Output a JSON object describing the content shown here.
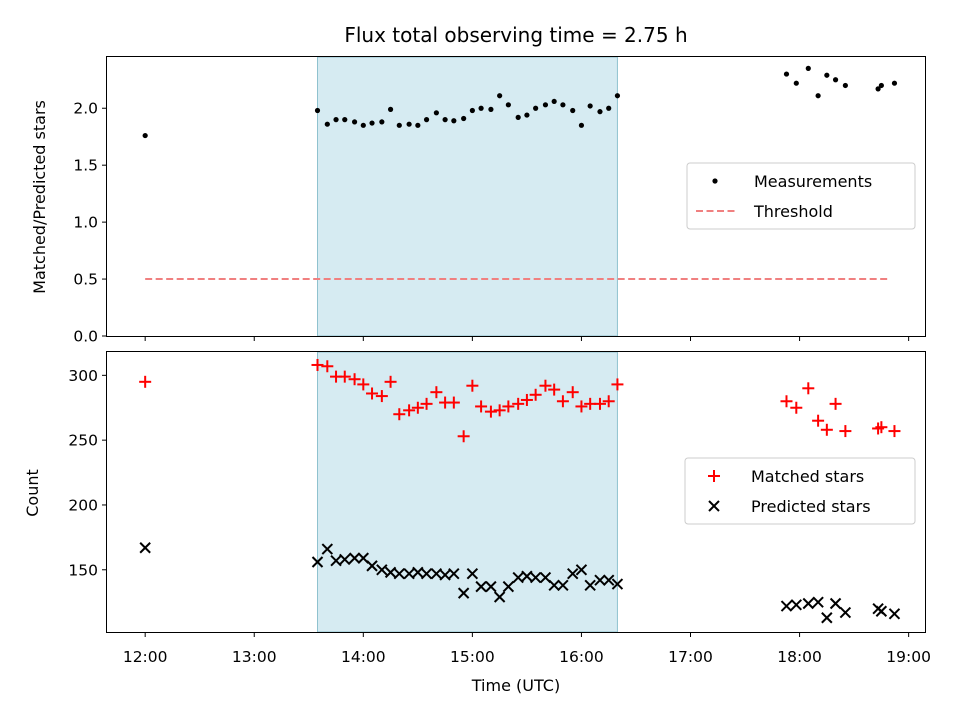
{
  "chart_data": [
    {
      "type": "scatter",
      "title": "Flux total observing time = 2.75 h",
      "xlabel": "",
      "ylabel": "Matched/Predicted stars",
      "xlim": [
        11.65,
        19.15
      ],
      "ylim": [
        0,
        2.45
      ],
      "yticks": [
        0.0,
        0.5,
        1.0,
        1.5,
        2.0
      ],
      "ytick_labels": [
        "0.0",
        "0.5",
        "1.0",
        "1.5",
        "2.0"
      ],
      "shaded_span": [
        13.58,
        16.33
      ],
      "legend": {
        "position": "center-right",
        "entries": [
          "Measurements",
          "Threshold"
        ]
      },
      "series": [
        {
          "name": "Measurements",
          "marker": "dot",
          "color": "#000000",
          "x": [
            12.0,
            13.58,
            13.67,
            13.75,
            13.83,
            13.92,
            14.0,
            14.08,
            14.17,
            14.25,
            14.33,
            14.42,
            14.5,
            14.58,
            14.67,
            14.75,
            14.83,
            14.92,
            15.0,
            15.08,
            15.17,
            15.25,
            15.33,
            15.42,
            15.5,
            15.58,
            15.67,
            15.75,
            15.83,
            15.92,
            16.0,
            16.08,
            16.17,
            16.25,
            16.33,
            17.88,
            17.97,
            18.08,
            18.17,
            18.25,
            18.33,
            18.42,
            18.72,
            18.75,
            18.87
          ],
          "y": [
            1.76,
            1.98,
            1.86,
            1.9,
            1.9,
            1.88,
            1.85,
            1.87,
            1.88,
            1.99,
            1.85,
            1.86,
            1.85,
            1.9,
            1.96,
            1.9,
            1.89,
            1.91,
            1.98,
            2.0,
            1.99,
            2.11,
            2.03,
            1.92,
            1.94,
            2.0,
            2.03,
            2.06,
            2.03,
            1.98,
            1.85,
            2.02,
            1.97,
            2.0,
            2.11,
            2.3,
            2.22,
            2.35,
            2.11,
            2.29,
            2.25,
            2.2,
            2.17,
            2.2,
            2.22
          ]
        },
        {
          "name": "Threshold",
          "marker": "dashed-line",
          "color": "#f08080",
          "x": [
            12.0,
            18.83
          ],
          "y": [
            0.5,
            0.5
          ]
        }
      ]
    },
    {
      "type": "scatter",
      "title": "",
      "xlabel": "Time (UTC)",
      "ylabel": "Count",
      "xlim": [
        11.65,
        19.15
      ],
      "ylim": [
        102,
        318
      ],
      "xticks": [
        12,
        13,
        14,
        15,
        16,
        17,
        18,
        19
      ],
      "xtick_labels": [
        "12:00",
        "13:00",
        "14:00",
        "15:00",
        "16:00",
        "17:00",
        "18:00",
        "19:00"
      ],
      "yticks": [
        150,
        200,
        250,
        300
      ],
      "ytick_labels": [
        "150",
        "200",
        "250",
        "300"
      ],
      "shaded_span": [
        13.58,
        16.33
      ],
      "legend": {
        "position": "center-right",
        "entries": [
          "Matched stars",
          "Predicted stars"
        ]
      },
      "series": [
        {
          "name": "Matched stars",
          "marker": "plus",
          "color": "#ff0000",
          "x": [
            12.0,
            13.58,
            13.67,
            13.75,
            13.83,
            13.92,
            14.0,
            14.08,
            14.17,
            14.25,
            14.33,
            14.42,
            14.5,
            14.58,
            14.67,
            14.75,
            14.83,
            14.92,
            15.0,
            15.08,
            15.17,
            15.25,
            15.33,
            15.42,
            15.5,
            15.58,
            15.67,
            15.75,
            15.83,
            15.92,
            16.0,
            16.08,
            16.17,
            16.25,
            16.33,
            17.88,
            17.97,
            18.08,
            18.17,
            18.25,
            18.33,
            18.42,
            18.72,
            18.75,
            18.87
          ],
          "y": [
            295,
            308,
            307,
            299,
            299,
            297,
            293,
            286,
            284,
            295,
            270,
            273,
            275,
            278,
            287,
            279,
            279,
            253,
            292,
            276,
            272,
            273,
            276,
            278,
            281,
            285,
            292,
            289,
            280,
            287,
            276,
            278,
            278,
            280,
            293,
            280,
            275,
            290,
            265,
            258,
            278,
            257,
            259,
            260,
            257
          ]
        },
        {
          "name": "Predicted stars",
          "marker": "x",
          "color": "#000000",
          "x": [
            12.0,
            13.58,
            13.67,
            13.75,
            13.83,
            13.92,
            14.0,
            14.08,
            14.17,
            14.25,
            14.33,
            14.42,
            14.5,
            14.58,
            14.67,
            14.75,
            14.83,
            14.92,
            15.0,
            15.08,
            15.17,
            15.25,
            15.33,
            15.42,
            15.5,
            15.58,
            15.67,
            15.75,
            15.83,
            15.92,
            16.0,
            16.08,
            16.17,
            16.25,
            16.33,
            17.88,
            17.97,
            18.08,
            18.17,
            18.25,
            18.33,
            18.42,
            18.72,
            18.75,
            18.87
          ],
          "y": [
            167,
            156,
            166,
            157,
            158,
            159,
            159,
            153,
            150,
            148,
            147,
            147,
            148,
            147,
            147,
            146,
            147,
            132,
            147,
            137,
            137,
            129,
            137,
            144,
            145,
            144,
            144,
            138,
            138,
            147,
            150,
            138,
            142,
            142,
            139,
            122,
            123,
            124,
            125,
            113,
            124,
            117,
            120,
            118,
            116
          ]
        }
      ]
    }
  ]
}
